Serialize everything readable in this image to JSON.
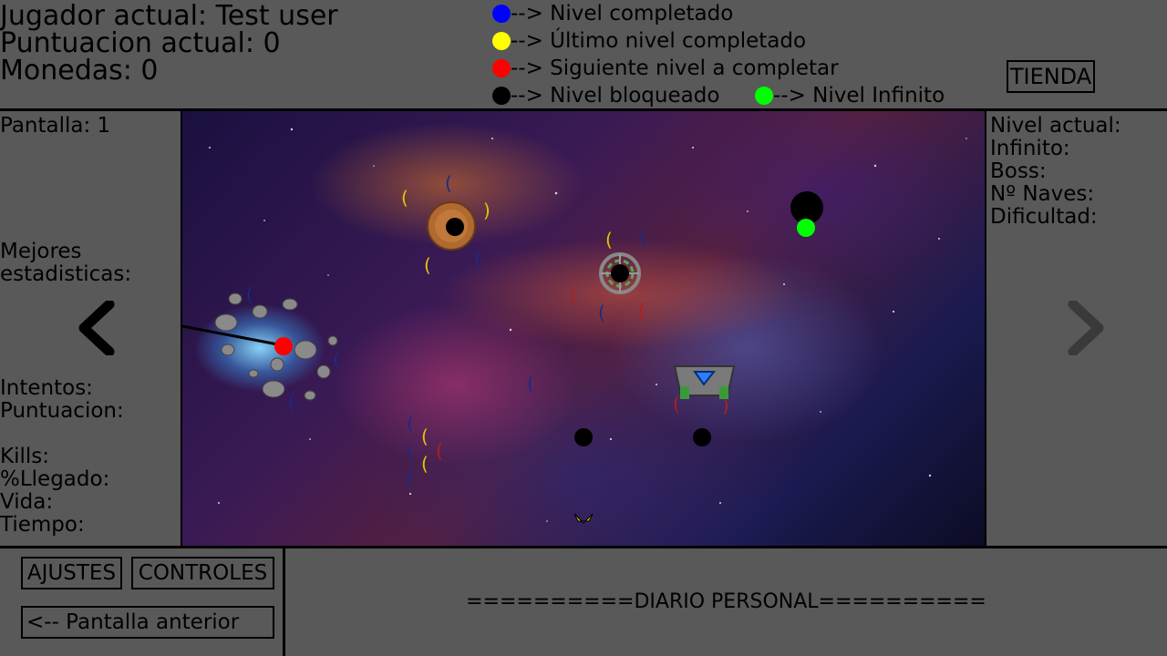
{
  "header": {
    "player_label": "Jugador actual: Test user",
    "score_label": "Puntuacion actual: 0",
    "coins_label": "Monedas: 0"
  },
  "legend": [
    {
      "color": "#0000ff",
      "text": "--> Nivel completado"
    },
    {
      "color": "#ffff00",
      "text": "--> Último nivel completado"
    },
    {
      "color": "#ff0000",
      "text": "--> Siguiente nivel a completar"
    },
    {
      "color": "#000000",
      "text": "--> Nivel bloqueado"
    },
    {
      "color": "#00ff00",
      "text": "--> Nivel Infinito"
    }
  ],
  "shop_button": "TIENDA",
  "left_panel": {
    "screen_label": "Pantalla: 1",
    "best_stats_line1": "Mejores",
    "best_stats_line2": "estadisticas:",
    "attempts": "Intentos:",
    "score": "Puntuacion:",
    "kills": "Kills:",
    "reached": "%Llegado:",
    "life": "Vida:",
    "time": "Tiempo:"
  },
  "right_panel": {
    "current_level": "Nivel actual:",
    "infinite": "Infinito:",
    "boss": "Boss:",
    "ships": "Nº Naves:",
    "difficulty": "Dificultad:"
  },
  "bottom": {
    "settings_button": "AJUSTES",
    "controls_button": "CONTROLES",
    "prev_screen_button": "<-- Pantalla anterior",
    "diary": "==========DIARIO PERSONAL=========="
  },
  "colors": {
    "background": "#595959",
    "completed": "#0000ff",
    "last_completed": "#ffff00",
    "next_level": "#ff0000",
    "locked": "#000000",
    "infinite": "#00ff00"
  },
  "map_nodes": [
    {
      "id": "level-red",
      "state": "next",
      "color": "#ff0000"
    },
    {
      "id": "level-planet",
      "state": "locked",
      "color": "#000000"
    },
    {
      "id": "level-target",
      "state": "locked",
      "color": "#000000"
    },
    {
      "id": "level-lower-a",
      "state": "locked",
      "color": "#000000"
    },
    {
      "id": "level-lower-b",
      "state": "locked",
      "color": "#000000"
    },
    {
      "id": "level-blackhole",
      "state": "locked",
      "color": "#000000"
    },
    {
      "id": "level-infinite",
      "state": "infinite",
      "color": "#00ff00"
    }
  ]
}
